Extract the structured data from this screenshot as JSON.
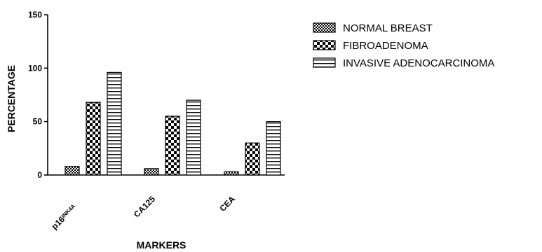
{
  "chart_data": {
    "type": "bar",
    "title": "",
    "xlabel": "MARKERS",
    "ylabel": "PERCENTAGE",
    "ylim": [
      0,
      150
    ],
    "yticks": [
      0,
      50,
      100,
      150
    ],
    "categories": [
      "p16INK4A",
      "CA125",
      "CEA"
    ],
    "category_labels": [
      {
        "base": "p16",
        "sup": "INK4A"
      },
      {
        "base": "CA125",
        "sup": ""
      },
      {
        "base": "CEA",
        "sup": ""
      }
    ],
    "series": [
      {
        "name": "NORMAL BREAST",
        "pattern": "fine-check",
        "values": [
          8,
          6,
          3
        ]
      },
      {
        "name": "FIBROADENOMA",
        "pattern": "checker",
        "values": [
          68,
          55,
          30
        ]
      },
      {
        "name": "INVASIVE ADENOCARCINOMA",
        "pattern": "hstripes",
        "values": [
          96,
          70,
          50
        ]
      }
    ],
    "legend_position": "top-right",
    "grid": false
  }
}
